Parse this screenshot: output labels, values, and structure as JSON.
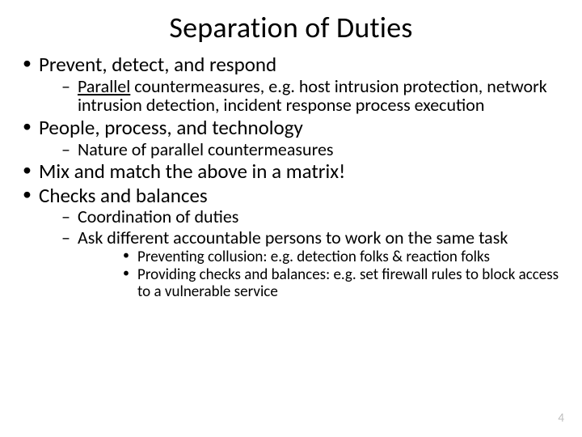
{
  "colors": {
    "background": "#ffffff",
    "text": "#000000",
    "page_number": "#bfbfbf"
  },
  "typography": {
    "family": "Calibri",
    "title_size_pt": 36,
    "lvl1_size_pt": 25,
    "lvl2_size_pt": 22,
    "lvl3_size_pt": 19
  },
  "slide": {
    "title": "Separation of Duties",
    "page_number": "4",
    "bullets": {
      "b1": "Prevent, detect, and respond",
      "b1_1_underlined": "Parallel",
      "b1_1_rest": " countermeasures, e.g. host intrusion protection, network intrusion detection, incident response process execution",
      "b2": "People, process, and technology",
      "b2_1": "Nature of parallel countermeasures",
      "b3": "Mix and match the above in a matrix!",
      "b4": "Checks and balances",
      "b4_1": "Coordination of duties",
      "b4_2": "Ask different accountable persons to work on the same task",
      "b4_2_a": "Preventing collusion: e.g. detection folks & reaction folks",
      "b4_2_b": "Providing checks and balances: e.g. set firewall rules to block access to a vulnerable service"
    }
  }
}
